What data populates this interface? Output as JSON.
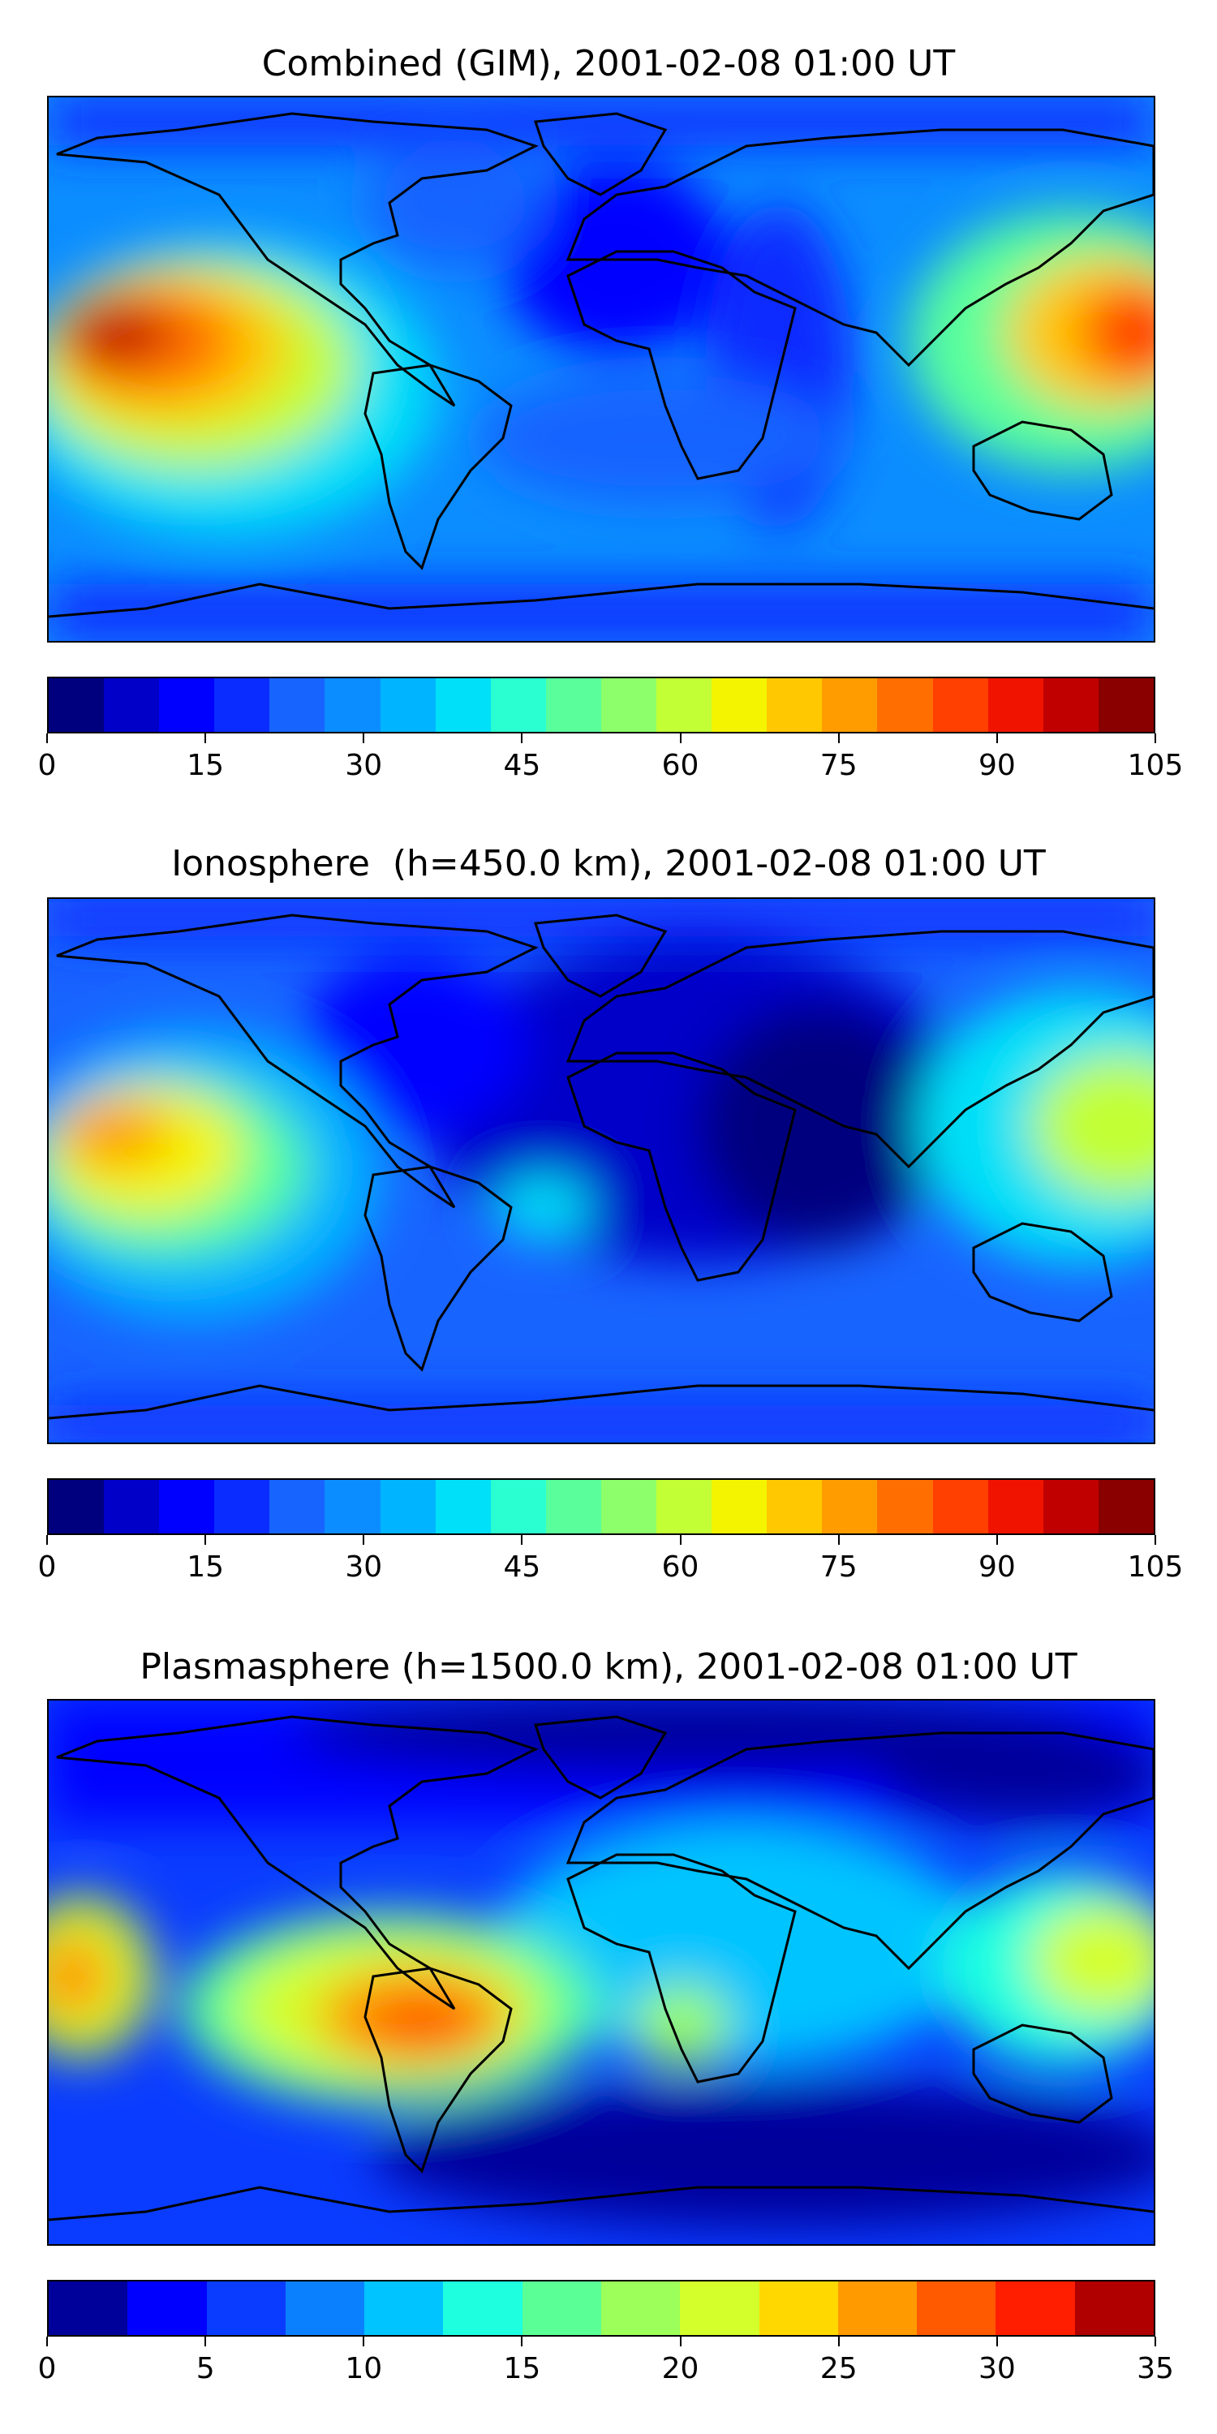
{
  "panels": [
    {
      "title": "Combined (GIM), 2001-02-08 01:00 UT",
      "colors": [
        "#00007f",
        "#0000c8",
        "#0000ff",
        "#0a2cff",
        "#1864ff",
        "#0b8dff",
        "#00b4ff",
        "#00e0f8",
        "#2affd2",
        "#5aff9c",
        "#8cff6a",
        "#c2ff34",
        "#f4f400",
        "#ffc800",
        "#ff9c00",
        "#ff6e00",
        "#ff4000",
        "#f01400",
        "#c00000",
        "#8a0000"
      ],
      "ticks": [
        "0",
        "15",
        "30",
        "45",
        "60",
        "75",
        "90",
        "105"
      ]
    },
    {
      "title": "Ionosphere  (h=450.0 km), 2001-02-08 01:00 UT",
      "colors": [
        "#00007f",
        "#0000c8",
        "#0000ff",
        "#0a2cff",
        "#1864ff",
        "#0b8dff",
        "#00b4ff",
        "#00e0f8",
        "#2affd2",
        "#5aff9c",
        "#8cff6a",
        "#c2ff34",
        "#f4f400",
        "#ffc800",
        "#ff9c00",
        "#ff6e00",
        "#ff4000",
        "#f01400",
        "#c00000",
        "#8a0000"
      ],
      "ticks": [
        "0",
        "15",
        "30",
        "45",
        "60",
        "75",
        "90",
        "105"
      ]
    },
    {
      "title": "Plasmasphere (h=1500.0 km), 2001-02-08 01:00 UT",
      "colors": [
        "#00009b",
        "#0000ff",
        "#0a3cff",
        "#0b80ff",
        "#00c4ff",
        "#1effe0",
        "#5aff96",
        "#9cff5a",
        "#d4ff2a",
        "#ffd800",
        "#ff9a00",
        "#ff5a00",
        "#ff1e00",
        "#b00000"
      ],
      "ticks": [
        "0",
        "5",
        "10",
        "15",
        "20",
        "25",
        "30",
        "35"
      ]
    }
  ]
}
